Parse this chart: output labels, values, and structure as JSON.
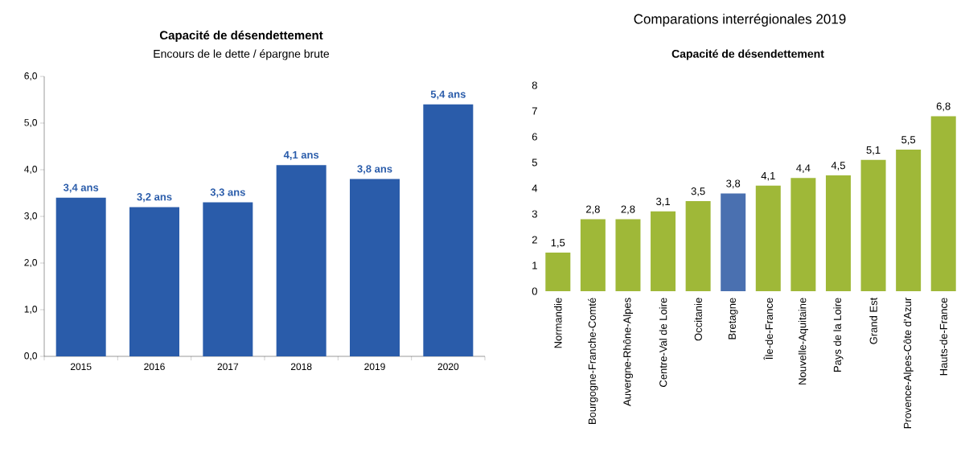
{
  "chart_data": [
    {
      "type": "bar",
      "title": "Capacité de désendettement",
      "subtitle": "Encours de le dette / épargne brute",
      "categories": [
        "2015",
        "2016",
        "2017",
        "2018",
        "2019",
        "2020"
      ],
      "values": [
        3.4,
        3.2,
        3.3,
        4.1,
        3.8,
        5.4
      ],
      "color": "#2a5caa",
      "value_labels": [
        "3,4 ans",
        "3,2 ans",
        "3,3 ans",
        "4,1 ans",
        "3,8 ans",
        "5,4 ans"
      ],
      "ylim": [
        0,
        6
      ],
      "yticks": [
        {
          "value": 0,
          "label": "0,0"
        },
        {
          "value": 1,
          "label": "1,0"
        },
        {
          "value": 2,
          "label": "2,0"
        },
        {
          "value": 3,
          "label": "3,0"
        },
        {
          "value": 4,
          "label": "4,0"
        },
        {
          "value": 5,
          "label": "5,0"
        },
        {
          "value": 6,
          "label": "6,0"
        }
      ]
    },
    {
      "type": "bar",
      "title": "Comparations interrégionales 2019",
      "subtitle": "Capacité de désendettement",
      "categories": [
        "Normandie",
        "Bourgogne-Franche-Comté",
        "Auvergne-Rhône-Alpes",
        "Centre-Val de Loire",
        "Occitanie",
        "Bretagne",
        "Île-de-France",
        "Nouvelle-Aquitaine",
        "Pays de la Loire",
        "Grand Est",
        "Provence-Alpes-Côte d'Azur",
        "Hauts-de-France"
      ],
      "values": [
        1.5,
        2.8,
        2.8,
        3.1,
        3.5,
        3.8,
        4.1,
        4.4,
        4.5,
        5.1,
        5.5,
        6.8
      ],
      "colors": [
        "#9fb838",
        "#9fb838",
        "#9fb838",
        "#9fb838",
        "#9fb838",
        "#4a70b0",
        "#9fb838",
        "#9fb838",
        "#9fb838",
        "#9fb838",
        "#9fb838",
        "#9fb838"
      ],
      "value_labels": [
        "1,5",
        "2,8",
        "2,8",
        "3,1",
        "3,5",
        "3,8",
        "4,1",
        "4,4",
        "4,5",
        "5,1",
        "5,5",
        "6,8"
      ],
      "ylim": [
        0,
        8
      ],
      "yticks": [
        0,
        1,
        2,
        3,
        4,
        5,
        6,
        7,
        8
      ]
    }
  ]
}
